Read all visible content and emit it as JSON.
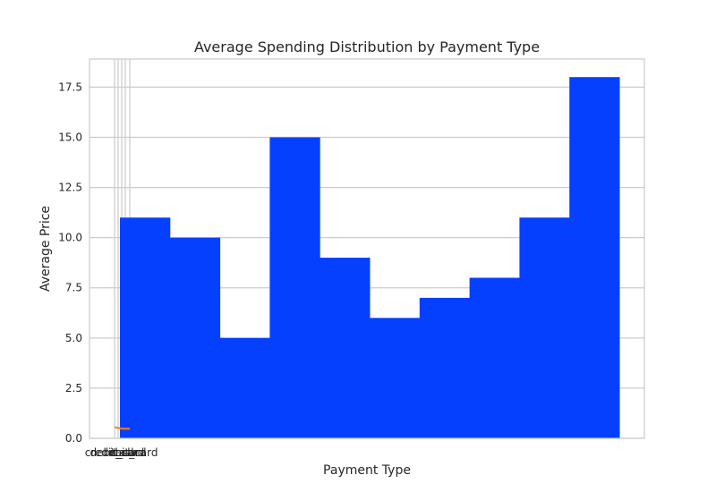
{
  "chart_data": {
    "type": "bar",
    "title": "Average Spending Distribution by Payment Type",
    "xlabel": "Payment Type",
    "ylabel": "Average Price",
    "ylim": [
      0,
      18.9
    ],
    "yticks": [
      "0.0",
      "2.5",
      "5.0",
      "7.5",
      "10.0",
      "12.5",
      "15.0",
      "17.5"
    ],
    "ytick_values": [
      0,
      2.5,
      5,
      7.5,
      10,
      12.5,
      15,
      17.5
    ],
    "xtick_labels": [
      "credit_card",
      "debit_card",
      "cash",
      "cash",
      "debit_card"
    ],
    "bar_color": "#0540ff",
    "line_color": "#ff7f0e",
    "grid": true,
    "values": [
      11,
      10,
      5,
      15,
      9,
      6,
      7,
      8,
      11,
      18
    ],
    "line_values": [
      0.56,
      0.48,
      0.48
    ]
  }
}
